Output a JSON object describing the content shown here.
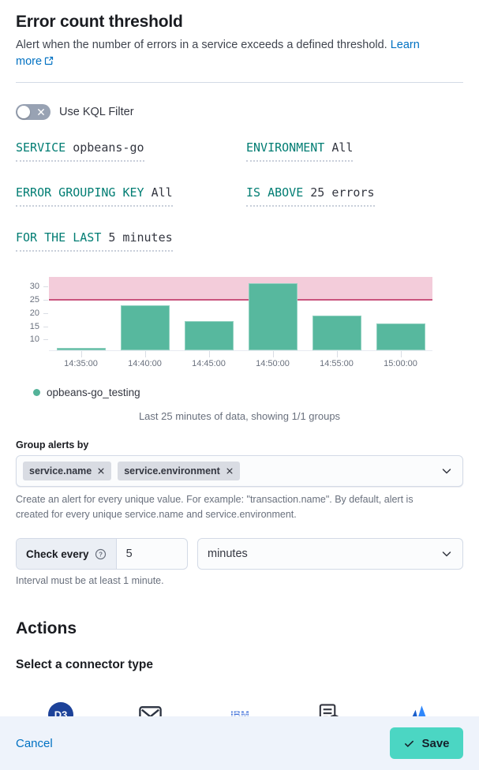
{
  "header": {
    "title": "Error count threshold",
    "description": "Alert when the number of errors in a service exceeds a defined threshold.",
    "learn_more": "Learn more"
  },
  "kql_toggle": {
    "label": "Use KQL Filter",
    "state": "off"
  },
  "conditions": [
    {
      "label": "SERVICE",
      "value": "opbeans-go"
    },
    {
      "label": "ENVIRONMENT",
      "value": "All"
    },
    {
      "label": "ERROR GROUPING KEY",
      "value": "All"
    },
    {
      "label": "IS ABOVE",
      "value": "25 errors"
    },
    {
      "label": "FOR THE LAST",
      "value": "5 minutes"
    }
  ],
  "chart_data": {
    "type": "bar",
    "categories": [
      "14:35:00",
      "14:40:00",
      "14:45:00",
      "14:50:00",
      "14:55:00",
      "15:00:00"
    ],
    "series": [
      {
        "name": "opbeans-go_testing",
        "values": [
          7,
          23,
          17,
          31,
          19,
          16
        ]
      }
    ],
    "threshold": 25,
    "y_ticks": [
      10,
      15,
      20,
      25,
      30
    ],
    "ylim": [
      6,
      33.5
    ],
    "grid": false,
    "legend_position": "bottom-left",
    "bar_color": "#57b89e",
    "threshold_line_color": "#c9547e",
    "threshold_fill_color": "#f3ccda",
    "caption": "Last 25 minutes of data, showing 1/1 groups"
  },
  "group_alerts": {
    "label": "Group alerts by",
    "tags": [
      "service.name",
      "service.environment"
    ],
    "help": "Create an alert for every unique value. For example: \"transaction.name\". By default, alert is created for every unique service.name and service.environment."
  },
  "schedule": {
    "prepend": "Check every",
    "value": "5",
    "unit": "minutes",
    "hint": "Interval must be at least 1 minute."
  },
  "actions": {
    "heading": "Actions",
    "subheading": "Select a connector type",
    "connectors": [
      {
        "name": "D3 Security",
        "icon": "d3-security-icon"
      },
      {
        "name": "Email",
        "icon": "email-icon"
      },
      {
        "name": "IBM Resilient",
        "icon": "ibm-resilient-icon"
      },
      {
        "name": "Index",
        "icon": "index-icon"
      },
      {
        "name": "Jira",
        "icon": "jira-icon"
      }
    ]
  },
  "footer": {
    "cancel": "Cancel",
    "save": "Save"
  },
  "colors": {
    "accent_teal": "#017d73",
    "link_blue": "#0071c2",
    "save_button": "#4bd6c3",
    "footer_bg": "#eef3fb",
    "toggle_off": "#98a2b3"
  }
}
